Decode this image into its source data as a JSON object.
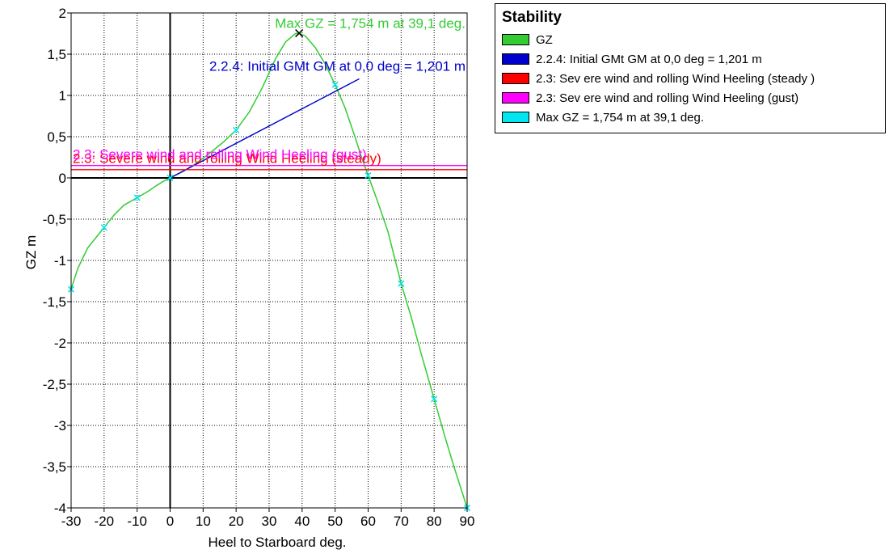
{
  "chart_data": {
    "type": "line",
    "xlabel": "Heel to Starboard   deg.",
    "ylabel": "GZ   m",
    "xlim": [
      -30,
      90
    ],
    "ylim": [
      -4,
      2
    ],
    "x_ticks": [
      -30,
      -20,
      -10,
      0,
      10,
      20,
      30,
      40,
      50,
      60,
      70,
      80,
      90
    ],
    "y_ticks": [
      2,
      1.5,
      1,
      0.5,
      0,
      -0.5,
      -1,
      -1.5,
      -2,
      -2.5,
      -3,
      -3.5,
      -4
    ],
    "x_tick_labels": [
      "-30",
      "-20",
      "-10",
      "0",
      "10",
      "20",
      "30",
      "40",
      "50",
      "60",
      "70",
      "80",
      "90"
    ],
    "y_tick_labels": [
      "2",
      "1,5",
      "1",
      "0,5",
      "0",
      "-0,5",
      "-1",
      "-1,5",
      "-2",
      "-2,5",
      "-3",
      "-3,5",
      "-4"
    ],
    "grid": true,
    "legend_position": "top-right-outside",
    "series": [
      {
        "name": "GZ",
        "color": "#33cc33",
        "x": [
          -30,
          -28,
          -25,
          -22,
          -20,
          -17,
          -14,
          -10,
          -7,
          -4,
          -2,
          0,
          4,
          8,
          12,
          16,
          20,
          24,
          28,
          32,
          35,
          38,
          39.1,
          41,
          44,
          47,
          50,
          53,
          56,
          58,
          60,
          63,
          66,
          70,
          73,
          76,
          80,
          83,
          86,
          90
        ],
        "y": [
          -1.35,
          -1.1,
          -0.85,
          -0.7,
          -0.6,
          -0.45,
          -0.33,
          -0.24,
          -0.17,
          -0.09,
          -0.04,
          0,
          0.08,
          0.18,
          0.3,
          0.43,
          0.58,
          0.8,
          1.1,
          1.45,
          1.65,
          1.75,
          1.754,
          1.72,
          1.58,
          1.38,
          1.13,
          0.85,
          0.5,
          0.25,
          0.03,
          -0.3,
          -0.65,
          -1.28,
          -1.68,
          -2.12,
          -2.68,
          -3.1,
          -3.5,
          -4.0
        ]
      },
      {
        "name": "2.2.4: Initial GMt GM at 0,0 deg = 1,201 m",
        "color": "#0000cc",
        "x": [
          0,
          57.3
        ],
        "y": [
          0,
          1.201
        ]
      },
      {
        "name": "2.3: Sev ere wind and rolling Wind Heeling (steady )",
        "color": "#ff0000",
        "x": [
          -30,
          90
        ],
        "y": [
          0.1,
          0.1
        ]
      },
      {
        "name": "2.3: Sev ere wind and rolling Wind Heeling (gust)",
        "color": "#ff00ff",
        "x": [
          -30,
          90
        ],
        "y": [
          0.15,
          0.15
        ]
      },
      {
        "name": "Max GZ = 1,754 m at 39,1 deg.",
        "color": "#00e5ee",
        "x": [
          39.1
        ],
        "y": [
          1.754
        ]
      }
    ],
    "station_markers": {
      "color": "#00e5ee",
      "x": [
        -30,
        -20,
        -10,
        0,
        20,
        50,
        60,
        70,
        80,
        90
      ],
      "y": [
        -1.35,
        -0.6,
        -0.24,
        0,
        0.58,
        1.13,
        0.03,
        -1.28,
        -2.68,
        -4.0
      ]
    },
    "max_marker": {
      "x": 39.1,
      "y": 1.754,
      "color": "#000000"
    },
    "annotations": [
      {
        "text": "Max GZ = 1,754 m at 39,1 deg.",
        "color": "#33cc33",
        "x": 90,
        "y": 1.82
      },
      {
        "text": "2.2.4: Initial GMt GM at 0,0 deg = 1,201 m",
        "color": "#0000cc",
        "x": 90,
        "y": 1.3
      },
      {
        "text": "2.3: Severe wind and rolling Wind Heeling (steady)",
        "color": "#ff0000",
        "x": -30,
        "y": 0.18
      },
      {
        "text": "2.3: Severe wind and rolling Wind Heeling (gust)",
        "color": "#ff00ff",
        "x": -30,
        "y": 0.23
      }
    ]
  },
  "legend": {
    "title": "Stability",
    "items": [
      {
        "label": "GZ",
        "color": "#33cc33"
      },
      {
        "label": "2.2.4: Initial GMt GM at 0,0 deg = 1,201 m",
        "color": "#0000cc"
      },
      {
        "label": "2.3: Sev ere wind and rolling Wind Heeling (steady )",
        "color": "#ff0000"
      },
      {
        "label": "2.3: Sev ere wind and rolling Wind Heeling (gust)",
        "color": "#ff00ff"
      },
      {
        "label": "Max GZ = 1,754 m at 39,1 deg.",
        "color": "#00e5ee"
      }
    ]
  }
}
